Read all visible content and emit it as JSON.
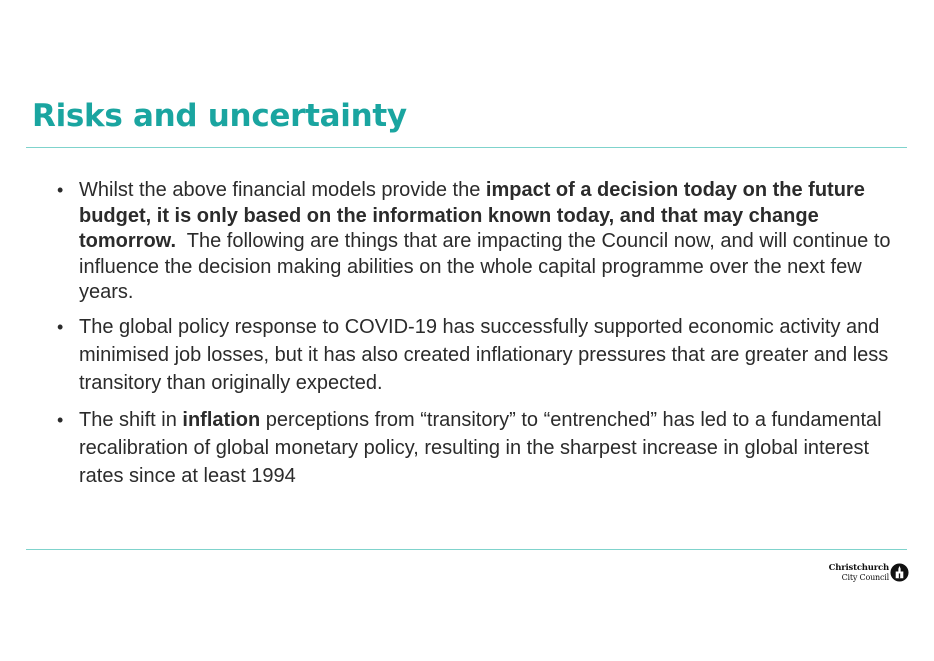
{
  "slide": {
    "title": "Risks and uncertainty"
  },
  "bullets": [
    {
      "segments": [
        {
          "text": "Whilst the above financial models provide the ",
          "bold": false
        },
        {
          "text": "impact of a decision today on the future budget, it is only based on the information known today, and that may change tomorrow.",
          "bold": true
        },
        {
          "text": "  The following are things that are impacting the Council now, and will continue to influence the decision making abilities on the whole capital programme over the next few years.",
          "bold": false
        }
      ]
    },
    {
      "segments": [
        {
          "text": "The global policy response to COVID-19 has successfully supported economic activity and minimised job losses, but it has also created inflationary pressures that are greater and less transitory than originally expected.",
          "bold": false
        }
      ]
    },
    {
      "segments": [
        {
          "text": "The shift in ",
          "bold": false
        },
        {
          "text": "inflation",
          "bold": true
        },
        {
          "text": " perceptions from “transitory” to “entrenched” has led to a fundamental recalibration of global monetary policy, resulting in the sharpest increase in global interest rates since at least 1994",
          "bold": false
        }
      ]
    }
  ],
  "bullet_glyph": "•",
  "logo": {
    "line1": "Christchurch",
    "line2": "City Council",
    "icon": "cathedral-emblem-icon"
  },
  "colors": {
    "title": "#1aa5a0",
    "rule": "#7fd3cc",
    "body_text": "#2b2b2b"
  }
}
